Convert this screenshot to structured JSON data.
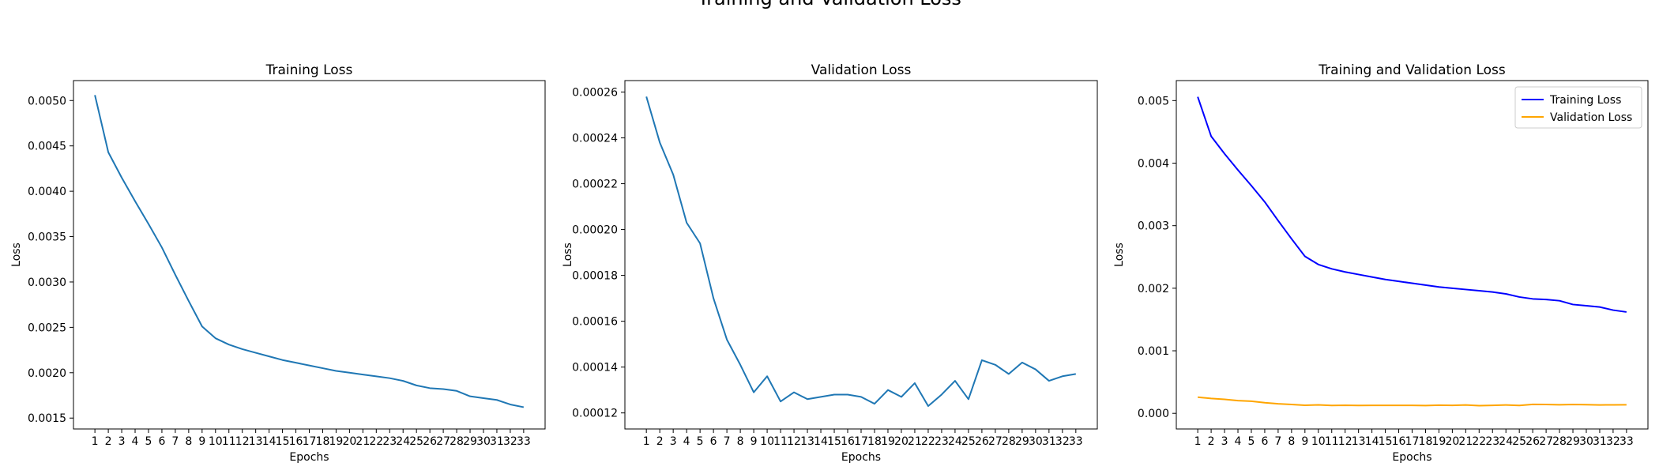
{
  "figure": {
    "suptitle": "Training and Validation Loss"
  },
  "chart_data": [
    {
      "type": "line",
      "title": "Training Loss",
      "xlabel": "Epochs",
      "ylabel": "Loss",
      "x": [
        1,
        2,
        3,
        4,
        5,
        6,
        7,
        8,
        9,
        10,
        11,
        12,
        13,
        14,
        15,
        16,
        17,
        18,
        19,
        20,
        21,
        22,
        23,
        24,
        25,
        26,
        27,
        28,
        29,
        30,
        31,
        32,
        33
      ],
      "xticks": [
        "1",
        "2",
        "3",
        "4",
        "5",
        "6",
        "7",
        "8",
        "9",
        "10",
        "11",
        "12",
        "13",
        "14",
        "15",
        "16",
        "17",
        "18",
        "19",
        "20",
        "21",
        "22",
        "23",
        "24",
        "25",
        "26",
        "27",
        "28",
        "29",
        "30",
        "31",
        "32",
        "33"
      ],
      "ylim": [
        0.00138,
        0.00522
      ],
      "yticks": [
        0.0015,
        0.002,
        0.0025,
        0.003,
        0.0035,
        0.004,
        0.0045,
        0.005
      ],
      "ytick_labels": [
        "0.0015",
        "0.0020",
        "0.0025",
        "0.0030",
        "0.0035",
        "0.0040",
        "0.0045",
        "0.0050"
      ],
      "series": [
        {
          "color": "#1f77b4",
          "values": [
            0.00506,
            0.00443,
            0.00415,
            0.00389,
            0.00364,
            0.00338,
            0.00308,
            0.00279,
            0.00251,
            0.00238,
            0.00231,
            0.00226,
            0.00222,
            0.00218,
            0.00214,
            0.00211,
            0.00208,
            0.00205,
            0.00202,
            0.002,
            0.00198,
            0.00196,
            0.00194,
            0.00191,
            0.00186,
            0.00183,
            0.00182,
            0.0018,
            0.00174,
            0.00172,
            0.0017,
            0.00165,
            0.00162
          ]
        }
      ]
    },
    {
      "type": "line",
      "title": "Validation Loss",
      "xlabel": "Epochs",
      "ylabel": "Loss",
      "x": [
        1,
        2,
        3,
        4,
        5,
        6,
        7,
        8,
        9,
        10,
        11,
        12,
        13,
        14,
        15,
        16,
        17,
        18,
        19,
        20,
        21,
        22,
        23,
        24,
        25,
        26,
        27,
        28,
        29,
        30,
        31,
        32,
        33
      ],
      "xticks": [
        "1",
        "2",
        "3",
        "4",
        "5",
        "6",
        "7",
        "8",
        "9",
        "10",
        "11",
        "12",
        "13",
        "14",
        "15",
        "16",
        "17",
        "18",
        "19",
        "20",
        "21",
        "22",
        "23",
        "24",
        "25",
        "26",
        "27",
        "28",
        "29",
        "30",
        "31",
        "32",
        "33"
      ],
      "ylim": [
        0.000113,
        0.000265
      ],
      "yticks": [
        0.00012,
        0.00014,
        0.00016,
        0.00018,
        0.0002,
        0.00022,
        0.00024,
        0.00026
      ],
      "ytick_labels": [
        "0.00012",
        "0.00014",
        "0.00016",
        "0.00018",
        "0.00020",
        "0.00022",
        "0.00024",
        "0.00026"
      ],
      "series": [
        {
          "color": "#1f77b4",
          "values": [
            0.000258,
            0.000238,
            0.000224,
            0.000203,
            0.000194,
            0.00017,
            0.000152,
            0.000141,
            0.000129,
            0.000136,
            0.000125,
            0.000129,
            0.000126,
            0.000127,
            0.000128,
            0.000128,
            0.000127,
            0.000124,
            0.00013,
            0.000127,
            0.000133,
            0.000123,
            0.000128,
            0.000134,
            0.000126,
            0.000143,
            0.000141,
            0.000137,
            0.000142,
            0.000139,
            0.000134,
            0.000136,
            0.000137
          ]
        }
      ]
    },
    {
      "type": "line",
      "title": "Training and Validation Loss",
      "xlabel": "Epochs",
      "ylabel": "Loss",
      "x": [
        1,
        2,
        3,
        4,
        5,
        6,
        7,
        8,
        9,
        10,
        11,
        12,
        13,
        14,
        15,
        16,
        17,
        18,
        19,
        20,
        21,
        22,
        23,
        24,
        25,
        26,
        27,
        28,
        29,
        30,
        31,
        32,
        33
      ],
      "xticks": [
        "1",
        "2",
        "3",
        "4",
        "5",
        "6",
        "7",
        "8",
        "9",
        "10",
        "11",
        "12",
        "13",
        "14",
        "15",
        "16",
        "17",
        "18",
        "19",
        "20",
        "21",
        "22",
        "23",
        "24",
        "25",
        "26",
        "27",
        "28",
        "29",
        "30",
        "31",
        "32",
        "33"
      ],
      "ylim": [
        -0.00025,
        0.00532
      ],
      "yticks": [
        0.0,
        0.001,
        0.002,
        0.003,
        0.004,
        0.005
      ],
      "ytick_labels": [
        "0.000",
        "0.001",
        "0.002",
        "0.003",
        "0.004",
        "0.005"
      ],
      "legend": "top-right",
      "series": [
        {
          "name": "Training Loss",
          "color": "#0000ff",
          "values": [
            0.00506,
            0.00443,
            0.00415,
            0.00389,
            0.00364,
            0.00338,
            0.00308,
            0.00279,
            0.00251,
            0.00238,
            0.00231,
            0.00226,
            0.00222,
            0.00218,
            0.00214,
            0.00211,
            0.00208,
            0.00205,
            0.00202,
            0.002,
            0.00198,
            0.00196,
            0.00194,
            0.00191,
            0.00186,
            0.00183,
            0.00182,
            0.0018,
            0.00174,
            0.00172,
            0.0017,
            0.00165,
            0.00162
          ]
        },
        {
          "name": "Validation Loss",
          "color": "#ffa500",
          "values": [
            0.000258,
            0.000238,
            0.000224,
            0.000203,
            0.000194,
            0.00017,
            0.000152,
            0.000141,
            0.000129,
            0.000136,
            0.000125,
            0.000129,
            0.000126,
            0.000127,
            0.000128,
            0.000128,
            0.000127,
            0.000124,
            0.00013,
            0.000127,
            0.000133,
            0.000123,
            0.000128,
            0.000134,
            0.000126,
            0.000143,
            0.000141,
            0.000137,
            0.000142,
            0.000139,
            0.000134,
            0.000136,
            0.000137
          ]
        }
      ]
    }
  ]
}
